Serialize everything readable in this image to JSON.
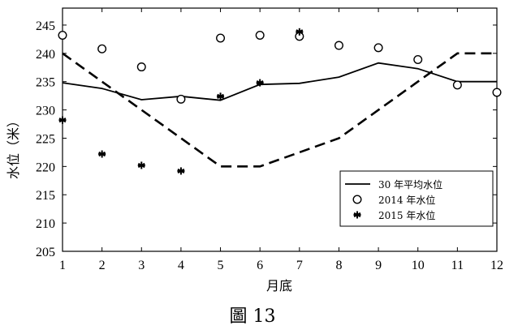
{
  "caption": "圖 13",
  "chart_data": {
    "type": "line",
    "xlabel": "月底",
    "ylabel": "水位（米）",
    "xlim": [
      1,
      12
    ],
    "ylim": [
      205,
      248
    ],
    "x_ticks": [
      1,
      2,
      3,
      4,
      5,
      6,
      7,
      8,
      9,
      10,
      11,
      12
    ],
    "y_ticks": [
      205,
      210,
      215,
      220,
      225,
      230,
      235,
      240,
      245
    ],
    "grid": false,
    "legend_position": "bottom-right",
    "series": [
      {
        "name": "30 年平均水位",
        "marker": "line",
        "x": [
          1,
          2,
          3,
          4,
          5,
          6,
          7,
          8,
          9,
          10,
          11,
          12
        ],
        "y": [
          234.8,
          233.8,
          231.8,
          232.4,
          231.7,
          234.5,
          234.7,
          235.8,
          238.3,
          237.3,
          235,
          235
        ]
      },
      {
        "name": "",
        "marker": "dashed",
        "x": [
          1,
          3,
          5,
          6,
          8,
          10,
          11,
          12
        ],
        "y": [
          240,
          230,
          220,
          220,
          225,
          235,
          240,
          240
        ]
      },
      {
        "name": "2014 年水位",
        "marker": "circle",
        "x": [
          1,
          2,
          3,
          4,
          5,
          6,
          7,
          8,
          9,
          10,
          11,
          12
        ],
        "y": [
          243.2,
          240.8,
          237.6,
          231.9,
          242.7,
          243.2,
          243,
          241.4,
          241,
          238.9,
          234.4,
          233.1
        ]
      },
      {
        "name": "2015 年水位",
        "marker": "asterisk",
        "x": [
          1,
          2,
          3,
          4,
          5,
          6,
          7
        ],
        "y": [
          228.2,
          222.2,
          220.2,
          219.2,
          232.4,
          234.8,
          243.8
        ]
      }
    ]
  }
}
